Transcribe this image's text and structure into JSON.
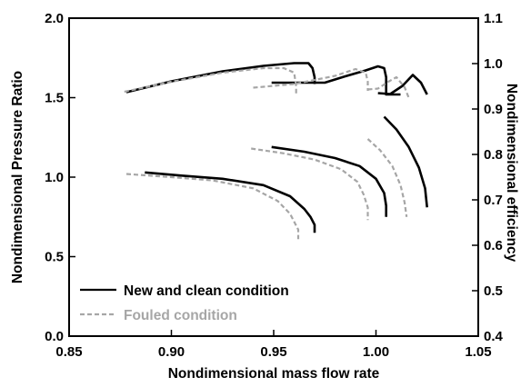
{
  "chart_data": {
    "type": "line",
    "title": "",
    "xlabel": "Nondimensional mass flow rate",
    "ylabel_left": "Nondimensional Pressure Ratio",
    "ylabel_right": "Nondimensional efficiency",
    "xlim": [
      0.85,
      1.05
    ],
    "ylim_left": [
      0.0,
      2.0
    ],
    "ylim_right": [
      0.4,
      1.1
    ],
    "x_ticks": [
      "0.85",
      "0.90",
      "0.95",
      "1.00",
      "1.05"
    ],
    "y_left_ticks": [
      "0.0",
      "0.5",
      "1.0",
      "1.5",
      "2.0"
    ],
    "y_right_ticks": [
      "0.4",
      "0.5",
      "0.6",
      "0.7",
      "0.8",
      "0.9",
      "1.0",
      "1.1"
    ],
    "grid": false,
    "legend_position": "bottom-left",
    "colors": {
      "new": "#000000",
      "fouled": "#a6a6a6"
    },
    "series": [
      {
        "name": "New and clean condition",
        "style": "solid",
        "axis": "left",
        "lines": [
          {
            "x": [
              0.887,
              0.905,
              0.925,
              0.945,
              0.958,
              0.965,
              0.968,
              0.97,
              0.97
            ],
            "y": [
              1.03,
              1.01,
              0.99,
              0.95,
              0.88,
              0.8,
              0.75,
              0.7,
              0.65
            ]
          },
          {
            "x": [
              0.949,
              0.965,
              0.98,
              0.992,
              1.0,
              1.004,
              1.005,
              1.005
            ],
            "y": [
              1.19,
              1.16,
              1.12,
              1.07,
              0.99,
              0.9,
              0.82,
              0.75
            ]
          },
          {
            "x": [
              1.004,
              1.01,
              1.016,
              1.021,
              1.024,
              1.025
            ],
            "y": [
              1.38,
              1.3,
              1.19,
              1.06,
              0.93,
              0.81
            ]
          }
        ]
      },
      {
        "name": "New and clean condition",
        "style": "solid",
        "axis": "right",
        "lines": [
          {
            "x": [
              0.878,
              0.9,
              0.925,
              0.945,
              0.96,
              0.967,
              0.969,
              0.97,
              0.97
            ],
            "y": [
              0.937,
              0.961,
              0.983,
              0.995,
              1.001,
              1.001,
              0.99,
              0.97,
              0.955
            ]
          },
          {
            "x": [
              0.949,
              0.97,
              0.975,
              0.985,
              0.995,
              1.001,
              1.004,
              1.005,
              1.005,
              1.012
            ],
            "y": [
              0.958,
              0.958,
              0.958,
              0.972,
              0.985,
              0.994,
              0.99,
              0.97,
              0.932,
              0.932
            ]
          },
          {
            "x": [
              1.001,
              1.007,
              1.013,
              1.018,
              1.022,
              1.025
            ],
            "y": [
              0.935,
              0.933,
              0.951,
              0.975,
              0.958,
              0.932
            ]
          }
        ]
      },
      {
        "name": "Fouled condition",
        "style": "dashed",
        "axis": "left",
        "lines": [
          {
            "x": [
              0.878,
              0.9,
              0.92,
              0.94,
              0.952,
              0.958,
              0.96,
              0.962,
              0.962
            ],
            "y": [
              1.02,
              1.0,
              0.98,
              0.93,
              0.85,
              0.77,
              0.72,
              0.67,
              0.61
            ]
          },
          {
            "x": [
              0.939,
              0.955,
              0.97,
              0.983,
              0.991,
              0.994,
              0.996,
              0.996
            ],
            "y": [
              1.18,
              1.15,
              1.11,
              1.05,
              0.97,
              0.89,
              0.81,
              0.73
            ]
          },
          {
            "x": [
              0.996,
              1.002,
              1.008,
              1.012,
              1.014,
              1.015
            ],
            "y": [
              1.24,
              1.17,
              1.07,
              0.95,
              0.84,
              0.75
            ]
          }
        ]
      },
      {
        "name": "Fouled condition",
        "style": "dashed",
        "axis": "right",
        "lines": [
          {
            "x": [
              0.877,
              0.9,
              0.925,
              0.945,
              0.955,
              0.96,
              0.961,
              0.961
            ],
            "y": [
              0.938,
              0.96,
              0.98,
              0.99,
              0.99,
              0.98,
              0.95,
              0.93
            ]
          },
          {
            "x": [
              0.94,
              0.96,
              0.98,
              0.99,
              0.995,
              0.996,
              0.996
            ],
            "y": [
              0.947,
              0.955,
              0.973,
              0.988,
              0.98,
              0.96,
              0.94
            ]
          },
          {
            "x": [
              0.996,
              1.001,
              1.006,
              1.01,
              1.014,
              1.016
            ],
            "y": [
              0.943,
              0.945,
              0.96,
              0.97,
              0.948,
              0.925
            ]
          }
        ]
      }
    ],
    "legend": [
      {
        "label": "New and clean condition",
        "style": "solid",
        "color": "#000000"
      },
      {
        "label": "Fouled condition",
        "style": "dashed",
        "color": "#a6a6a6"
      }
    ]
  }
}
